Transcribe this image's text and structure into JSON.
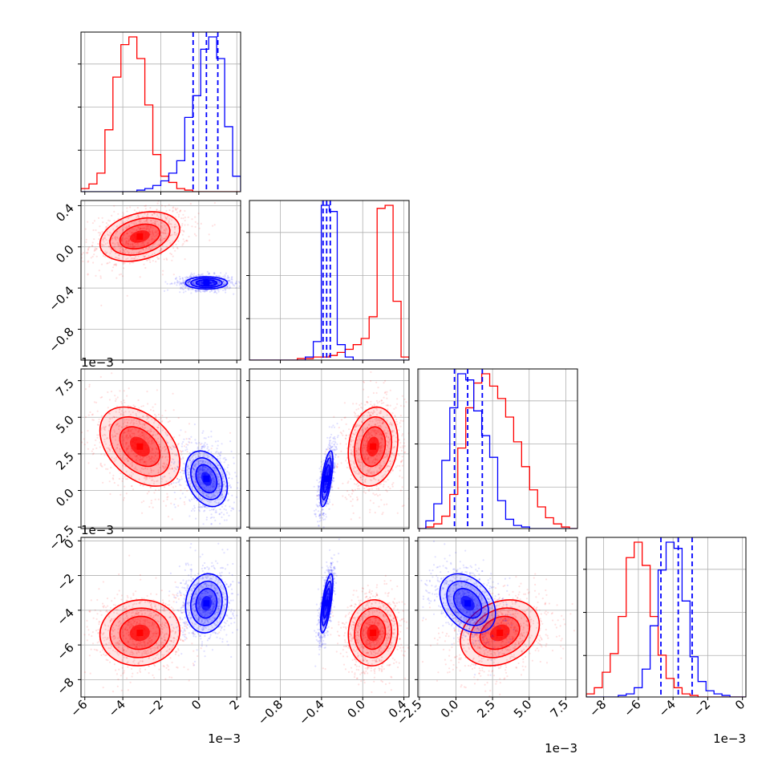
{
  "chart_data": {
    "type": "corner",
    "colors": {
      "red": "#ff0000",
      "blue": "#0000ff"
    },
    "grid": true,
    "quantile_lines": "blue dashed",
    "params": [
      {
        "id": "p0",
        "range": [
          -6.2,
          2.2
        ],
        "ticks": [
          -6,
          -4,
          -2,
          0,
          2
        ],
        "tick_labels": [
          "−6",
          "−4",
          "−2",
          "0",
          "2"
        ],
        "offset_label": "1e−3"
      },
      {
        "id": "p1",
        "range": [
          -1.1,
          0.45
        ],
        "ticks": [
          -0.8,
          -0.4,
          0.0,
          0.4
        ],
        "tick_labels": [
          "−0.8",
          "−0.4",
          "0.0",
          "0.4"
        ],
        "offset_label": ""
      },
      {
        "id": "p2",
        "range": [
          -2.6,
          8.3
        ],
        "ticks": [
          -2.5,
          0.0,
          2.5,
          5.0,
          7.5
        ],
        "tick_labels": [
          "−2.5",
          "0.0",
          "2.5",
          "5.0",
          "7.5"
        ],
        "offset_label": "1e−3"
      },
      {
        "id": "p3",
        "range": [
          -9.0,
          0.2
        ],
        "ticks": [
          -8,
          -6,
          -4,
          -2,
          0
        ],
        "tick_labels": [
          "−8",
          "−6",
          "−4",
          "−2",
          "0"
        ],
        "offset_label": "1e−3"
      }
    ],
    "series": [
      {
        "name": "",
        "color": "#ff0000",
        "mean": [
          -3.1,
          0.1,
          3.0,
          -5.3
        ],
        "sd": [
          1.05,
          0.12,
          1.35,
          0.95
        ],
        "corr": {
          "0-1": 0.3,
          "0-2": -0.4,
          "0-3": 0.05,
          "1-2": 0.15,
          "1-3": 0.05,
          "2-3": 0.25
        },
        "hist_bins": [
          [
            0.02,
            0.05,
            0.12,
            0.4,
            0.74,
            0.95,
            1.0,
            0.86,
            0.56,
            0.24,
            0.1,
            0.06,
            0.02,
            0.01,
            0.0,
            0.0,
            0.0,
            0.0,
            0.0,
            0.0
          ],
          [
            0.0,
            0.0,
            0.0,
            0.0,
            0.0,
            0.0,
            0.01,
            0.01,
            0.02,
            0.02,
            0.03,
            0.05,
            0.07,
            0.1,
            0.14,
            0.28,
            0.98,
            1.0,
            0.38,
            0.02
          ],
          [
            0.0,
            0.01,
            0.03,
            0.08,
            0.22,
            0.52,
            0.78,
            0.94,
            1.0,
            0.92,
            0.84,
            0.72,
            0.56,
            0.4,
            0.25,
            0.14,
            0.07,
            0.03,
            0.01,
            0.0
          ],
          [
            0.02,
            0.06,
            0.16,
            0.28,
            0.52,
            0.9,
            1.0,
            0.85,
            0.52,
            0.27,
            0.12,
            0.06,
            0.02,
            0.01,
            0.0,
            0.0,
            0.0,
            0.0,
            0.0,
            0.0
          ]
        ]
      },
      {
        "name": "",
        "color": "#0000ff",
        "mean": [
          0.4,
          -0.35,
          0.8,
          -3.6
        ],
        "sd": [
          0.55,
          0.03,
          0.95,
          0.85
        ],
        "corr": {
          "0-1": 0.0,
          "0-2": -0.3,
          "0-3": 0.1,
          "1-2": 0.65,
          "1-3": 0.7,
          "2-3": -0.35
        },
        "quantiles": [
          [
            -0.3,
            0.4,
            1.0
          ],
          [
            -0.385,
            -0.35,
            -0.315
          ],
          [
            -0.1,
            0.8,
            1.8
          ],
          [
            -4.7,
            -3.7,
            -2.9
          ]
        ],
        "hist_bins": [
          [
            0.0,
            0.0,
            0.0,
            0.0,
            0.0,
            0.0,
            0.0,
            0.01,
            0.02,
            0.04,
            0.07,
            0.12,
            0.2,
            0.48,
            0.62,
            0.92,
            1.0,
            0.86,
            0.42,
            0.1
          ],
          [
            0.0,
            0.0,
            0.0,
            0.0,
            0.0,
            0.0,
            0.0,
            0.02,
            0.12,
            1.0,
            0.96,
            0.1,
            0.02,
            0.0,
            0.0,
            0.0,
            0.0,
            0.0,
            0.0,
            0.0
          ],
          [
            0.0,
            0.05,
            0.16,
            0.44,
            0.78,
            1.0,
            0.96,
            0.76,
            0.6,
            0.46,
            0.18,
            0.06,
            0.02,
            0.01,
            0.0,
            0.0,
            0.0,
            0.0,
            0.0,
            0.0
          ],
          [
            0.0,
            0.0,
            0.0,
            0.0,
            0.01,
            0.02,
            0.06,
            0.18,
            0.46,
            0.82,
            1.0,
            0.96,
            0.62,
            0.26,
            0.1,
            0.04,
            0.02,
            0.01,
            0.0,
            0.0
          ]
        ]
      }
    ]
  }
}
